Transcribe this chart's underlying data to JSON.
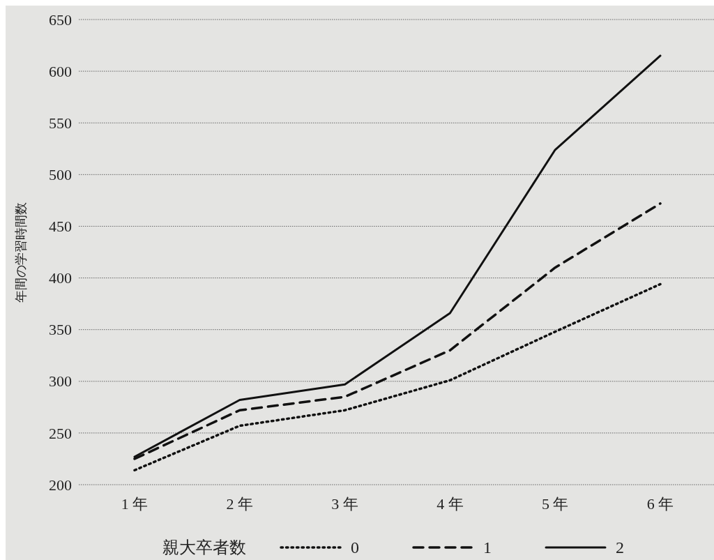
{
  "chart_data": {
    "type": "line",
    "ylabel": "年間の学習時間数",
    "legend_title": "親大卒者数",
    "categories": [
      "1 年",
      "2 年",
      "3 年",
      "4 年",
      "5 年",
      "6 年"
    ],
    "series": [
      {
        "name": "0",
        "color": "#111111",
        "line_style": "dotted",
        "values": [
          214,
          257,
          272,
          301,
          348,
          394
        ]
      },
      {
        "name": "1",
        "color": "#111111",
        "line_style": "dashed",
        "values": [
          225,
          272,
          285,
          330,
          410,
          472
        ]
      },
      {
        "name": "2",
        "color": "#111111",
        "line_style": "solid",
        "values": [
          227,
          282,
          297,
          366,
          524,
          615
        ]
      }
    ],
    "ylim": [
      200,
      650
    ],
    "yticks": [
      200,
      250,
      300,
      350,
      400,
      450,
      500,
      550,
      600,
      650
    ],
    "grid": "y",
    "legend": "bottom"
  }
}
